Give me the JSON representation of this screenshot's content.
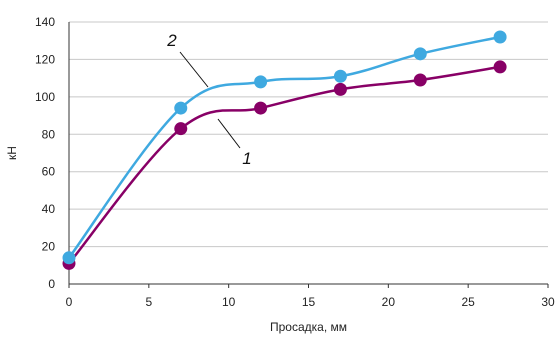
{
  "chart_data": {
    "type": "line",
    "title": "",
    "xlabel": "Просадка, мм",
    "ylabel": "кН",
    "xlim": [
      0,
      30
    ],
    "ylim": [
      0,
      140
    ],
    "x_ticks": [
      0,
      5,
      10,
      15,
      20,
      25,
      30
    ],
    "y_ticks": [
      0,
      20,
      40,
      60,
      80,
      100,
      120,
      140
    ],
    "grid": true,
    "legend": "none",
    "series": [
      {
        "label": "2",
        "color": "#3fa9e0",
        "x": [
          0,
          7,
          12,
          17,
          22,
          27
        ],
        "y": [
          14,
          94,
          108,
          111,
          123,
          132
        ]
      },
      {
        "label": "1",
        "color": "#880066",
        "x": [
          0,
          7,
          12,
          17,
          22,
          27
        ],
        "y": [
          11,
          83,
          94,
          104,
          109,
          116
        ]
      }
    ]
  }
}
